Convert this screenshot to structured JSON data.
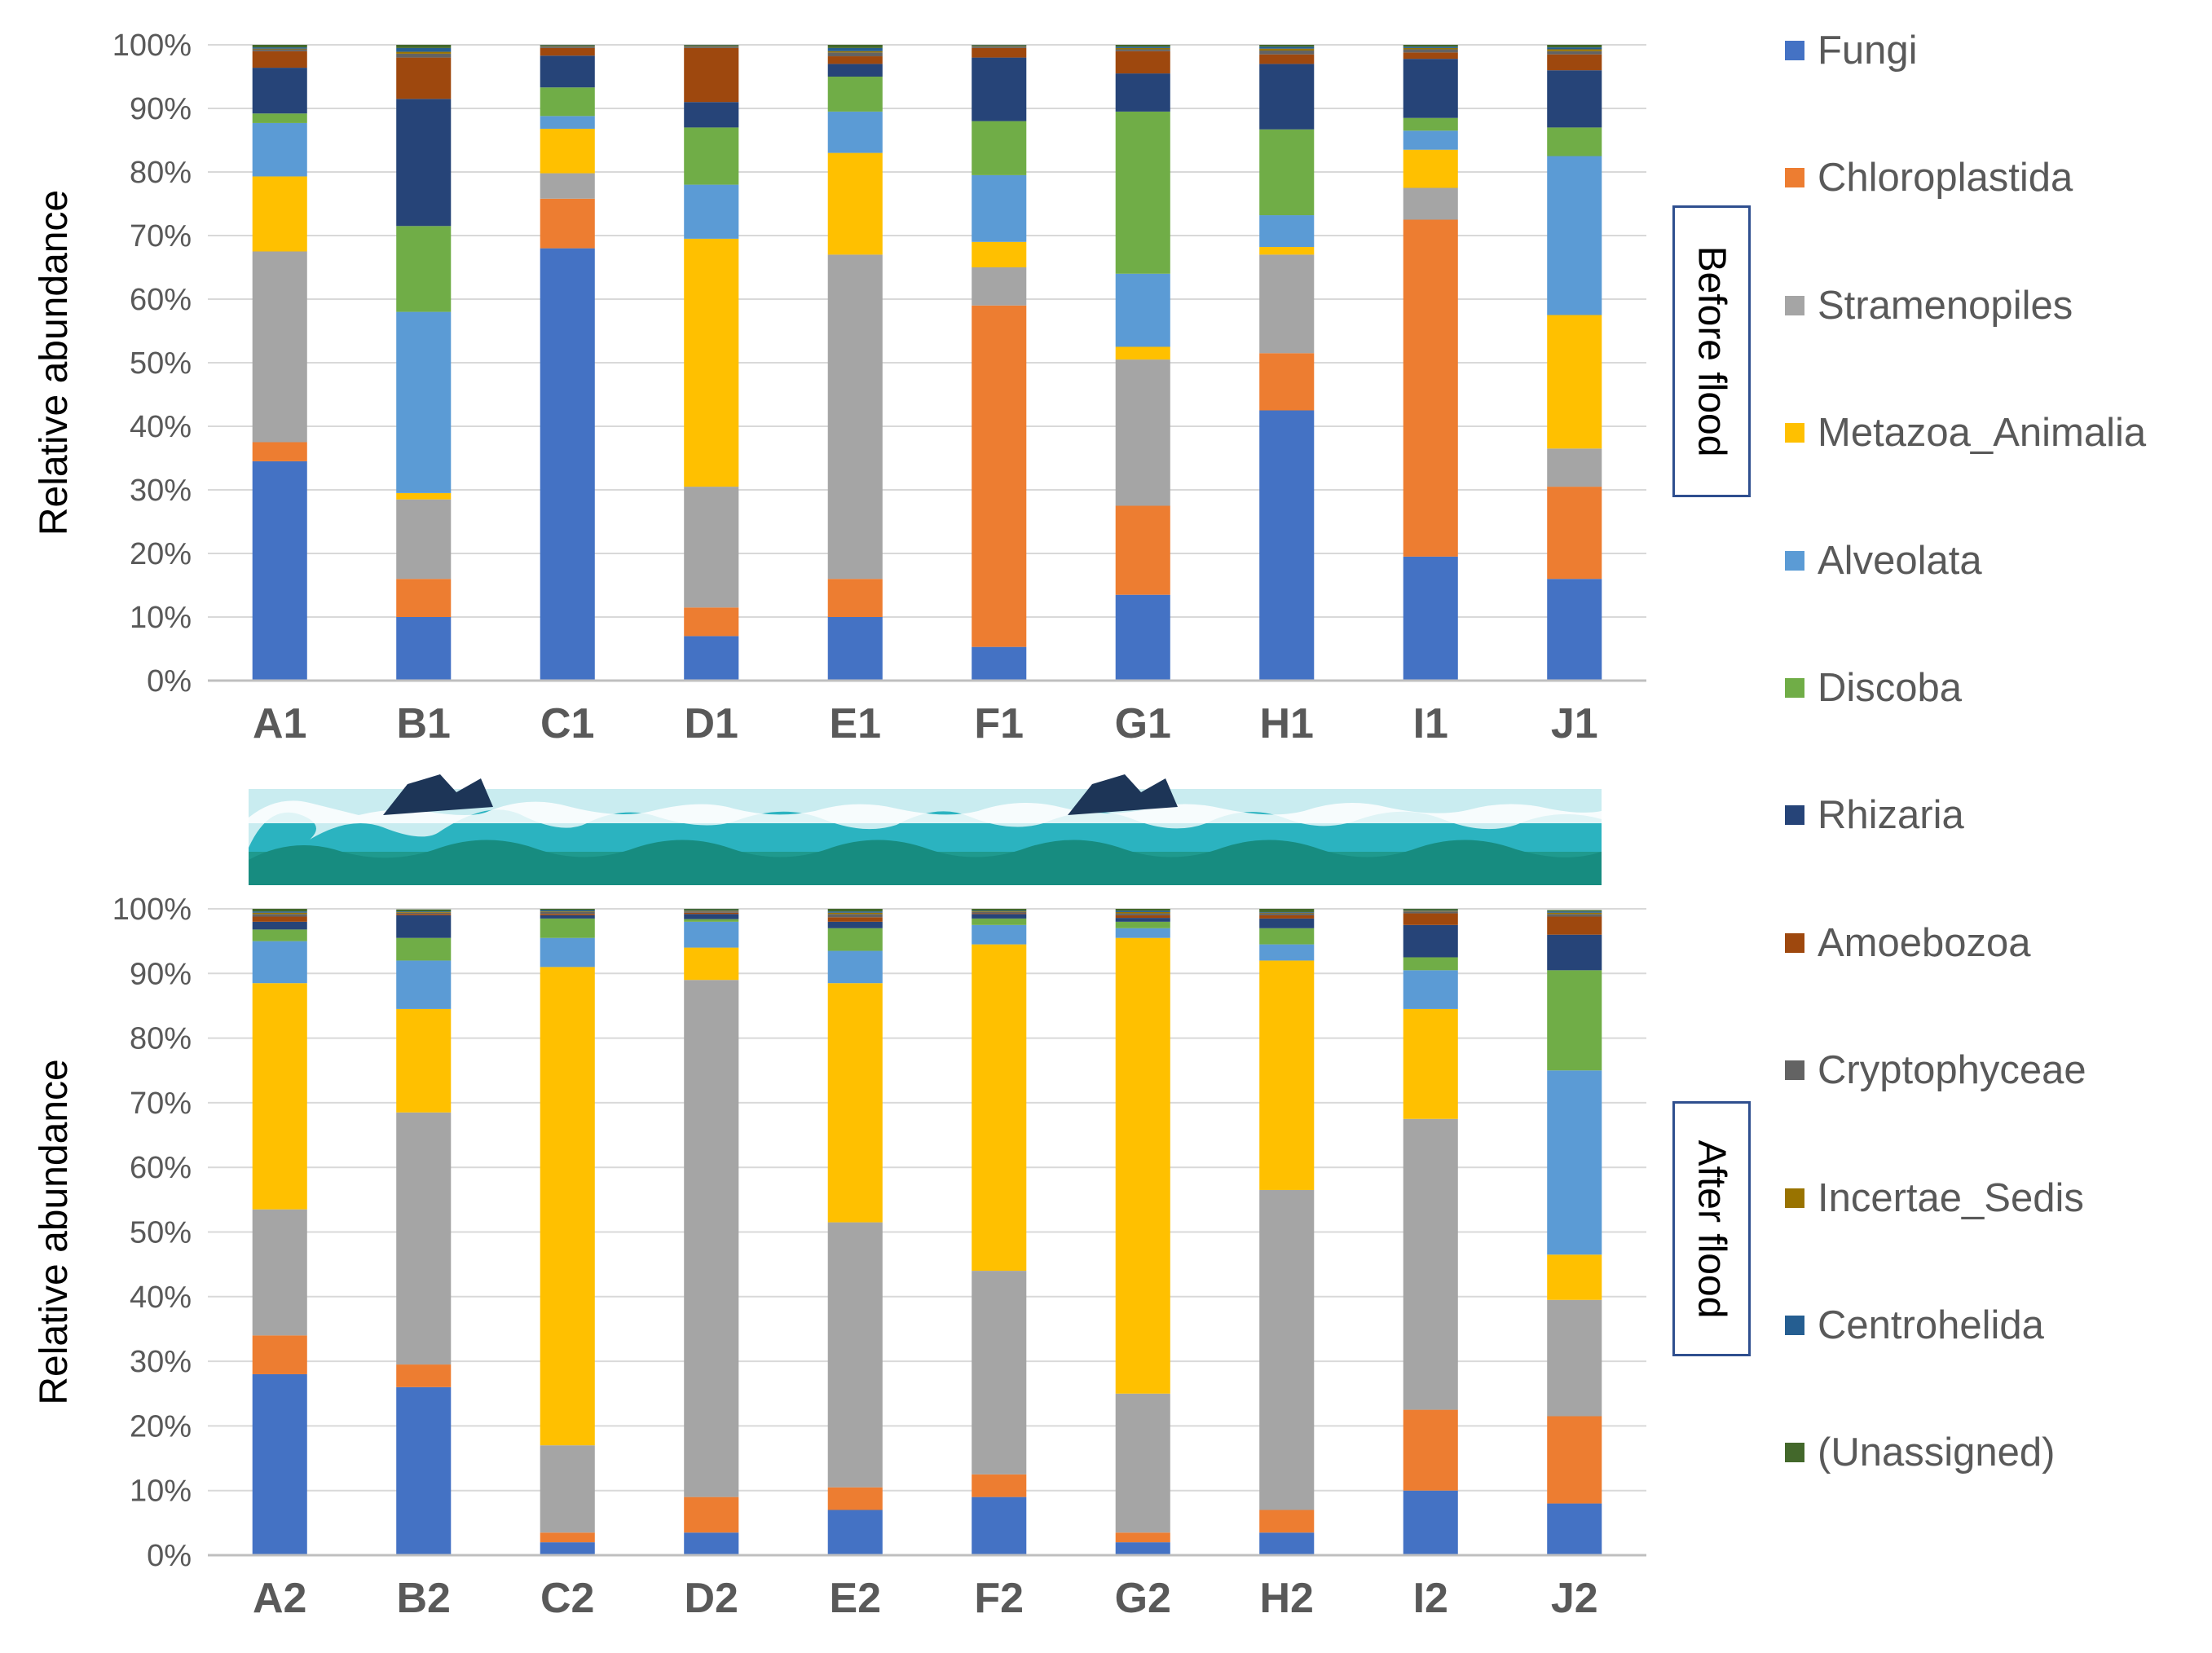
{
  "chart_data": [
    {
      "type": "bar",
      "stacked": true,
      "panel_label": "Before flood",
      "ylabel": "Relative abundance",
      "ylim": [
        0,
        100
      ],
      "y_ticks": [
        "0%",
        "10%",
        "20%",
        "30%",
        "40%",
        "50%",
        "60%",
        "70%",
        "80%",
        "90%",
        "100%"
      ],
      "categories": [
        "A1",
        "B1",
        "C1",
        "D1",
        "E1",
        "F1",
        "G1",
        "H1",
        "I1",
        "J1"
      ],
      "series": [
        {
          "name": "Fungi",
          "values": [
            34.5,
            10,
            68,
            7,
            10,
            5.3,
            13.5,
            42.5,
            19.5,
            16
          ]
        },
        {
          "name": "Chloroplastida",
          "values": [
            3,
            6,
            7.8,
            4.5,
            6,
            53.7,
            14,
            9,
            53,
            14.5
          ]
        },
        {
          "name": "Stramenopiles",
          "values": [
            30,
            12.5,
            4,
            19,
            51,
            6,
            23,
            15.5,
            5,
            6
          ]
        },
        {
          "name": "Metazoa_Animalia",
          "values": [
            11.8,
            1,
            7,
            39,
            16,
            4,
            2,
            1.2,
            6,
            21
          ]
        },
        {
          "name": "Alveolata",
          "values": [
            8.4,
            28.5,
            2,
            8.5,
            6.5,
            10.5,
            11.5,
            5,
            3,
            25
          ]
        },
        {
          "name": "Discoba",
          "values": [
            1.5,
            13.5,
            4.5,
            9,
            5.5,
            8.5,
            25.5,
            13.5,
            2,
            4.5
          ]
        },
        {
          "name": "Rhizaria",
          "values": [
            7.2,
            20,
            5,
            4,
            2,
            10,
            6,
            10.3,
            9.3,
            9
          ]
        },
        {
          "name": "Amoebozoa",
          "values": [
            2.6,
            6.5,
            1.2,
            8.5,
            1.2,
            1.5,
            3.5,
            1.5,
            1,
            2.5
          ]
        },
        {
          "name": "Cryptophyceae",
          "values": [
            0.3,
            0.6,
            0.2,
            0.2,
            0.6,
            0.2,
            0.3,
            0.6,
            0.5,
            0.5
          ]
        },
        {
          "name": "Incertae_Sedis",
          "values": [
            0.1,
            0.3,
            0.1,
            0.1,
            0.2,
            0.1,
            0.2,
            0.3,
            0.2,
            0.3
          ]
        },
        {
          "name": "Centrohelida",
          "values": [
            0.2,
            0.6,
            0.1,
            0.1,
            0.5,
            0.1,
            0.2,
            0.3,
            0.2,
            0.3
          ]
        },
        {
          "name": "(Unassigned)",
          "values": [
            0.4,
            0.5,
            0.1,
            0.1,
            0.5,
            0.1,
            0.3,
            0.3,
            0.3,
            0.4
          ]
        }
      ]
    },
    {
      "type": "bar",
      "stacked": true,
      "panel_label": "After flood",
      "ylabel": "Relative abundance",
      "ylim": [
        0,
        100
      ],
      "y_ticks": [
        "0%",
        "10%",
        "20%",
        "30%",
        "40%",
        "50%",
        "60%",
        "70%",
        "80%",
        "90%",
        "100%"
      ],
      "categories": [
        "A2",
        "B2",
        "C2",
        "D2",
        "E2",
        "F2",
        "G2",
        "H2",
        "I2",
        "J2"
      ],
      "series": [
        {
          "name": "Fungi",
          "values": [
            28,
            26,
            2,
            3.5,
            7,
            9,
            2,
            3.5,
            10,
            8
          ]
        },
        {
          "name": "Chloroplastida",
          "values": [
            6,
            3.5,
            1.5,
            5.5,
            3.5,
            3.5,
            1.5,
            3.5,
            12.5,
            13.5
          ]
        },
        {
          "name": "Stramenopiles",
          "values": [
            19.5,
            39,
            13.5,
            80,
            41,
            31.5,
            21.5,
            49.5,
            45,
            18
          ]
        },
        {
          "name": "Metazoa_Animalia",
          "values": [
            35,
            16,
            74,
            5,
            37,
            50.5,
            70.5,
            35.5,
            17,
            7
          ]
        },
        {
          "name": "Alveolata",
          "values": [
            6.5,
            7.5,
            4.5,
            4,
            5,
            3,
            1.5,
            2.5,
            6,
            28.5
          ]
        },
        {
          "name": "Discoba",
          "values": [
            1.8,
            3.5,
            3,
            0.4,
            3.5,
            1,
            1,
            2.5,
            2,
            15.5
          ]
        },
        {
          "name": "Rhizaria",
          "values": [
            1.2,
            3.5,
            0.5,
            0.8,
            1,
            0.7,
            0.6,
            1.5,
            5,
            5.5
          ]
        },
        {
          "name": "Amoebozoa",
          "values": [
            0.8,
            0.2,
            0.2,
            0.2,
            0.7,
            0.1,
            0.4,
            0.5,
            1.8,
            2.8
          ]
        },
        {
          "name": "Cryptophyceae",
          "values": [
            0.4,
            0.2,
            0.3,
            0.2,
            0.5,
            0.2,
            0.3,
            0.3,
            0.3,
            0.4
          ]
        },
        {
          "name": "Incertae_Sedis",
          "values": [
            0.2,
            0.1,
            0.1,
            0.1,
            0.2,
            0.1,
            0.2,
            0.1,
            0.1,
            0.2
          ]
        },
        {
          "name": "Centrohelida",
          "values": [
            0.2,
            0.1,
            0.2,
            0.1,
            0.2,
            0.1,
            0.2,
            0.1,
            0.1,
            0.2
          ]
        },
        {
          "name": "(Unassigned)",
          "values": [
            0.4,
            0.3,
            0.2,
            0.2,
            0.4,
            0.3,
            0.3,
            0.5,
            0.2,
            0.2
          ]
        }
      ]
    }
  ],
  "legend": {
    "items": [
      {
        "name": "Fungi",
        "color": "#4472c4"
      },
      {
        "name": "Chloroplastida",
        "color": "#ed7d31"
      },
      {
        "name": "Stramenopiles",
        "color": "#a5a5a5"
      },
      {
        "name": "Metazoa_Animalia",
        "color": "#ffc000"
      },
      {
        "name": "Alveolata",
        "color": "#5b9bd5"
      },
      {
        "name": "Discoba",
        "color": "#70ad47"
      },
      {
        "name": "Rhizaria",
        "color": "#264478"
      },
      {
        "name": "Amoebozoa",
        "color": "#9e480e"
      },
      {
        "name": "Cryptophyceae",
        "color": "#636363"
      },
      {
        "name": "Incertae_Sedis",
        "color": "#997300"
      },
      {
        "name": "Centrohelida",
        "color": "#255e91"
      },
      {
        "name": "(Unassigned)",
        "color": "#43682b"
      }
    ]
  },
  "panels": {
    "before_label": "Before flood",
    "after_label": "After flood"
  }
}
